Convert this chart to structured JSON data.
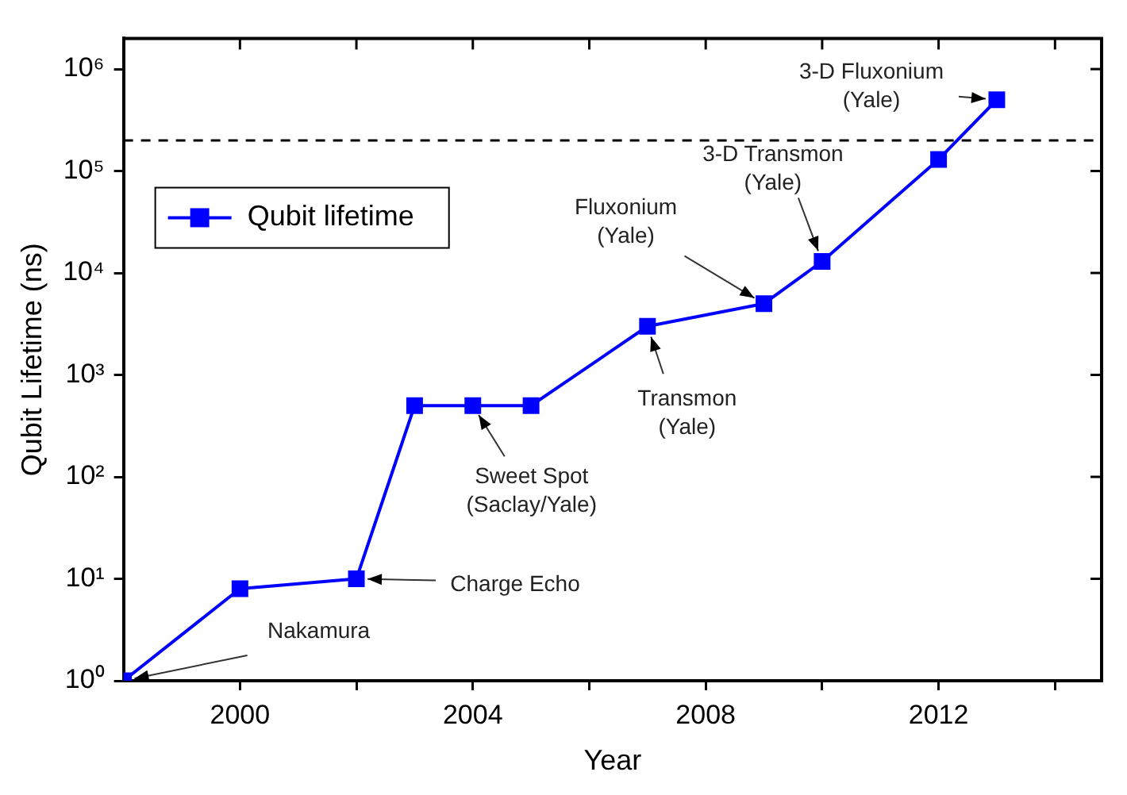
{
  "chart_data": {
    "type": "line",
    "xlabel": "Year",
    "ylabel": "Qubit Lifetime (ns)",
    "x": [
      1998,
      2000,
      2002,
      2003,
      2004,
      2005,
      2007,
      2009,
      2010,
      2012,
      2013
    ],
    "series": [
      {
        "name": "Qubit lifetime",
        "color": "#0000ff",
        "values": [
          1,
          8,
          10,
          500,
          500,
          500,
          3000,
          5000,
          13000,
          130000,
          500000
        ]
      }
    ],
    "log": "y",
    "xlim": [
      1998,
      2014.8
    ],
    "ylim": [
      1,
      2000000
    ],
    "xticks": [
      2000,
      {
        "value": 2002,
        "label": null
      },
      2004,
      {
        "value": 2006,
        "label": null
      },
      2008,
      {
        "value": 2010,
        "label": null
      },
      2012,
      {
        "value": 2014,
        "label": null
      }
    ],
    "yticks": [
      {
        "value": 1,
        "label": "10⁰"
      },
      {
        "value": 10,
        "label": "10¹"
      },
      {
        "value": 100,
        "label": "10²"
      },
      {
        "value": 1000,
        "label": "10³"
      },
      {
        "value": 10000,
        "label": "10⁴"
      },
      {
        "value": 100000,
        "label": "10⁵"
      },
      {
        "value": 1000000,
        "label": "10⁶"
      }
    ],
    "ref_lines": [
      {
        "axis": "y",
        "value": 200000,
        "color": "#000000",
        "line_style": "dashed"
      }
    ],
    "annotations": [
      {
        "text": "Nakamura",
        "x": 1998,
        "y": 1
      },
      {
        "text": "Charge Echo",
        "x": 2002,
        "y": 10
      },
      {
        "text": "Sweet Spot\n(Saclay/Yale)",
        "x": 2004,
        "y": 500
      },
      {
        "text": "Transmon\n(Yale)",
        "x": 2007,
        "y": 3000
      },
      {
        "text": "Fluxonium\n(Yale)",
        "x": 2009,
        "y": 5000
      },
      {
        "text": "3-D Transmon\n(Yale)",
        "x": 2010,
        "y": 13000
      },
      {
        "text": "3-D Fluxonium\n(Yale)",
        "x": 2013,
        "y": 500000
      }
    ],
    "legend": "top left",
    "marker": "square",
    "line_style": "solid",
    "grid": false
  }
}
